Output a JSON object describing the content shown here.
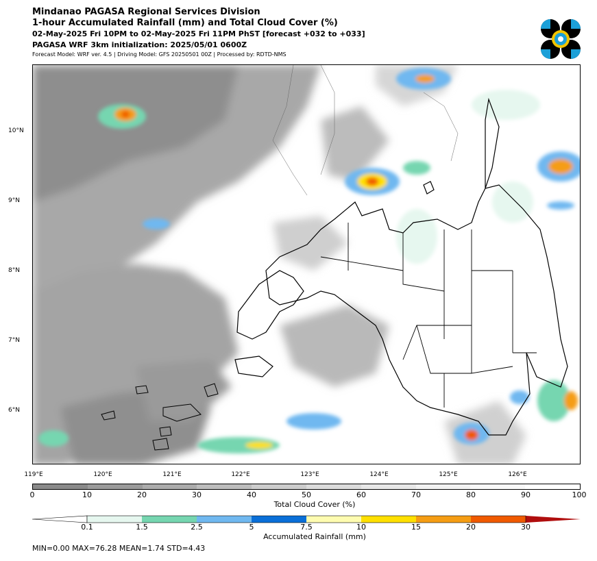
{
  "header": {
    "line1": "Mindanao PAGASA Regional Services Division",
    "line2": "1-hour Accumulated Rainfall (mm) and Total Cloud Cover (%)",
    "line3": "02-May-2025 Fri 10PM to 02-May-2025 Fri 11PM PhST [forecast +032 to +033]",
    "line4": "PAGASA WRF 3km initialization: 2025/05/01 0600Z",
    "line5": "Forecast Model: WRF ver. 4.5 | Driving Model: GFS 20250501 00Z | Processed by: RDTD-NMS"
  },
  "logo": {
    "icon": "pagasa-logo-icon",
    "colors": [
      "#000000",
      "#1ca0d8",
      "#f2c400"
    ]
  },
  "map": {
    "lat_labels": [
      "10°N",
      "9°N",
      "8°N",
      "7°N",
      "6°N"
    ],
    "lon_labels": [
      "119°E",
      "120°E",
      "121°E",
      "122°E",
      "123°E",
      "124°E",
      "125°E",
      "126°E"
    ],
    "extent": {
      "lon": [
        119,
        126.9
      ],
      "lat": [
        5.2,
        10.95
      ]
    }
  },
  "cloud_colorbar": {
    "ticks": [
      "0",
      "10",
      "20",
      "30",
      "40",
      "50",
      "60",
      "70",
      "80",
      "90",
      "100"
    ],
    "colors": [
      "#8a8a8a",
      "#9b9b9b",
      "#acacac",
      "#bdbdbd",
      "#cdcdcd",
      "#dcdcdc",
      "#e8e8e8",
      "#f2f2f2",
      "#f9f9f9",
      "#ffffff"
    ],
    "title": "Total Cloud Cover (%)"
  },
  "rain_colorbar": {
    "ticks": [
      "0.1",
      "1.5",
      "2.5",
      "5",
      "7.5",
      "10",
      "15",
      "20",
      "30"
    ],
    "colors": [
      "#e6f7ef",
      "#76d6b0",
      "#70b8f0",
      "#0a6fd8",
      "#fefcb0",
      "#ffe000",
      "#f59d14",
      "#f05a00",
      "#b00e0e"
    ],
    "title": "Accumulated Rainfall (mm)"
  },
  "stats": "MIN=0.00   MAX=76.28   MEAN=1.74   STD=4.43"
}
